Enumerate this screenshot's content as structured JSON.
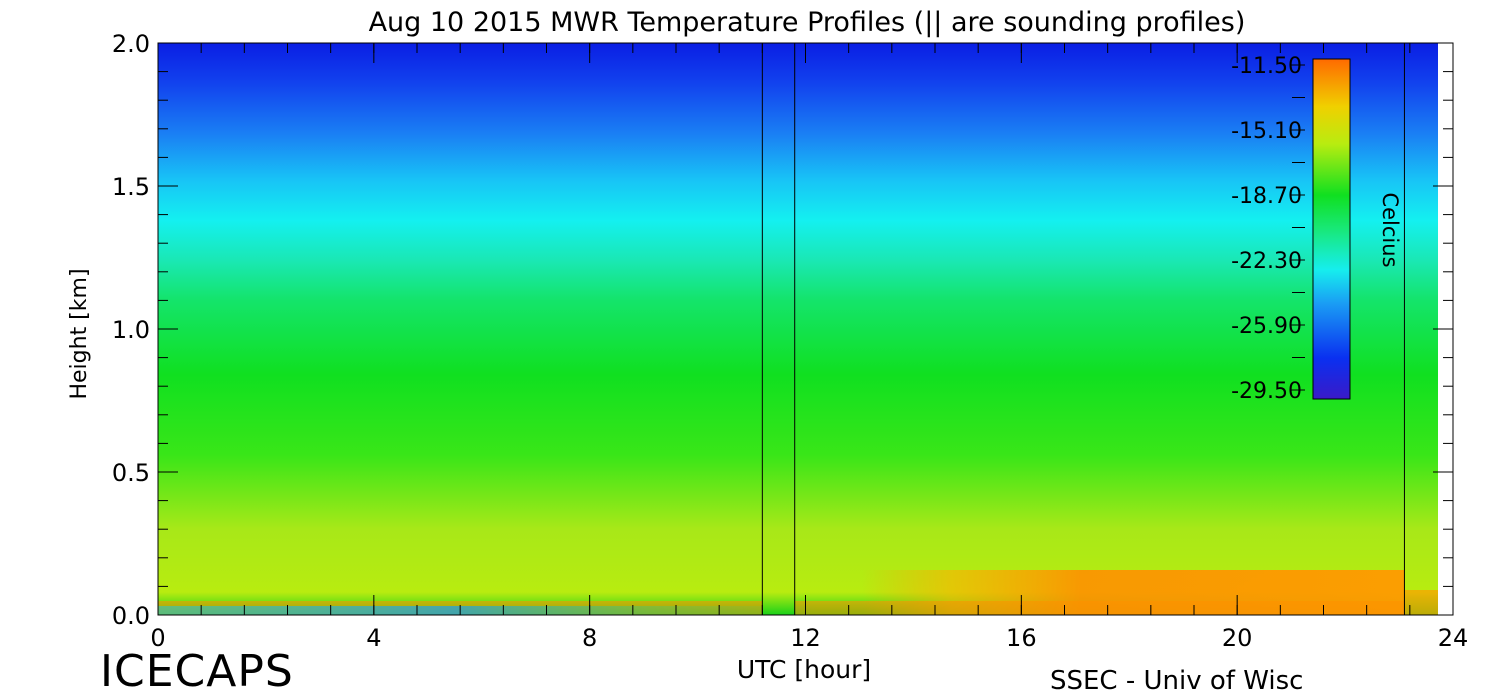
{
  "chart_data": {
    "type": "heatmap",
    "title": "Aug 10 2015 MWR Temperature Profiles (|| are sounding profiles)",
    "xlabel": "UTC [hour]",
    "ylabel": "Height [km]",
    "xlim": [
      0,
      24
    ],
    "ylim": [
      0,
      2
    ],
    "x_ticks": [
      0,
      4,
      8,
      12,
      16,
      20,
      24
    ],
    "y_ticks": [
      0.0,
      0.5,
      1.0,
      1.5,
      2.0
    ],
    "x_tick_labels": [
      "0",
      "4",
      "8",
      "12",
      "16",
      "20",
      "24"
    ],
    "y_tick_labels": [
      "0.0",
      "0.5",
      "1.0",
      "1.5",
      "2.0"
    ],
    "sounding_times": [
      11.2,
      11.8,
      23.1
    ],
    "colorbar": {
      "label": "Celcius",
      "min": -29.5,
      "max": -11.5,
      "tick_labels": [
        "-11.50",
        "-15.10",
        "-18.70",
        "-22.30",
        "-25.90",
        "-29.50"
      ],
      "placement": "top-right"
    },
    "grid": false
  },
  "footer": {
    "brand": "ICECAPS",
    "credit": "SSEC - Univ of Wisc"
  }
}
